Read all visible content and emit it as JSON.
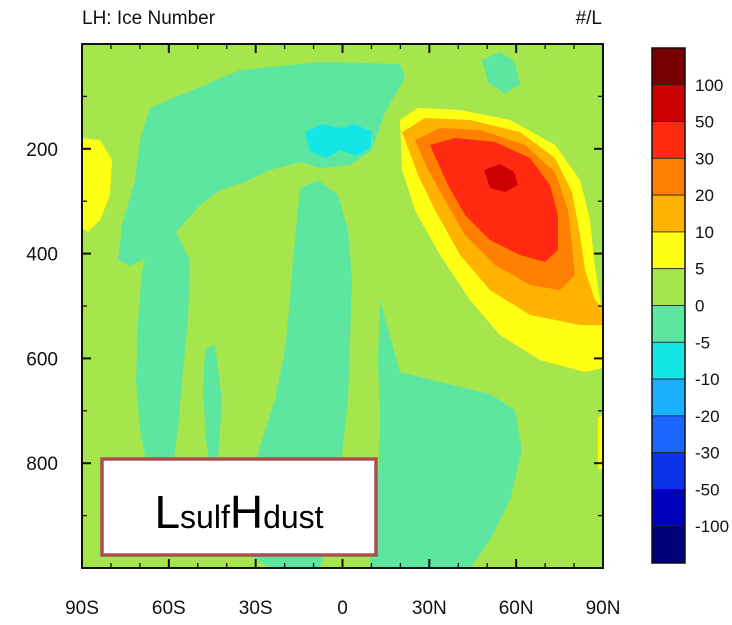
{
  "chart_data": {
    "type": "heatmap",
    "title_left": "LH: Ice Number",
    "title_right": "#/L",
    "annotation": {
      "text_L": "L",
      "text_sulf": "sulf",
      "text_H": "H",
      "text_dust": "dust"
    },
    "x_axis": {
      "range": [
        -90,
        90
      ],
      "ticks": [
        -90,
        -60,
        -30,
        0,
        30,
        60,
        90
      ],
      "tick_labels": [
        "90S",
        "60S",
        "30S",
        "0",
        "30N",
        "60N",
        "90N"
      ]
    },
    "y_axis": {
      "range": [
        1000,
        0
      ],
      "ticks": [
        200,
        400,
        600,
        800
      ],
      "tick_labels": [
        "200",
        "400",
        "600",
        "800"
      ]
    },
    "colorbar": {
      "labels": [
        "100",
        "50",
        "30",
        "20",
        "10",
        "5",
        "0",
        "-5",
        "-10",
        "-20",
        "-30",
        "-50",
        "-100"
      ],
      "colors": [
        "#7a0000",
        "#cc0000",
        "#ff2a10",
        "#ff8000",
        "#ffb300",
        "#ffff14",
        "#a6e64d",
        "#5ce6a0",
        "#14e6e6",
        "#1ab2ff",
        "#1a66ff",
        "#0d33e6",
        "#0000bf",
        "#00007a"
      ]
    },
    "levels": {
      "ge_1": "#ffff14",
      "ge_5": "#ffb300",
      "ge_10": "#ff8000",
      "ge_20": "#ff2a10",
      "ge_50": "#cc0000",
      "le_m1": "#5ce6a0",
      "le_m10": "#14e6e6",
      "background": "#a6e64d"
    }
  }
}
